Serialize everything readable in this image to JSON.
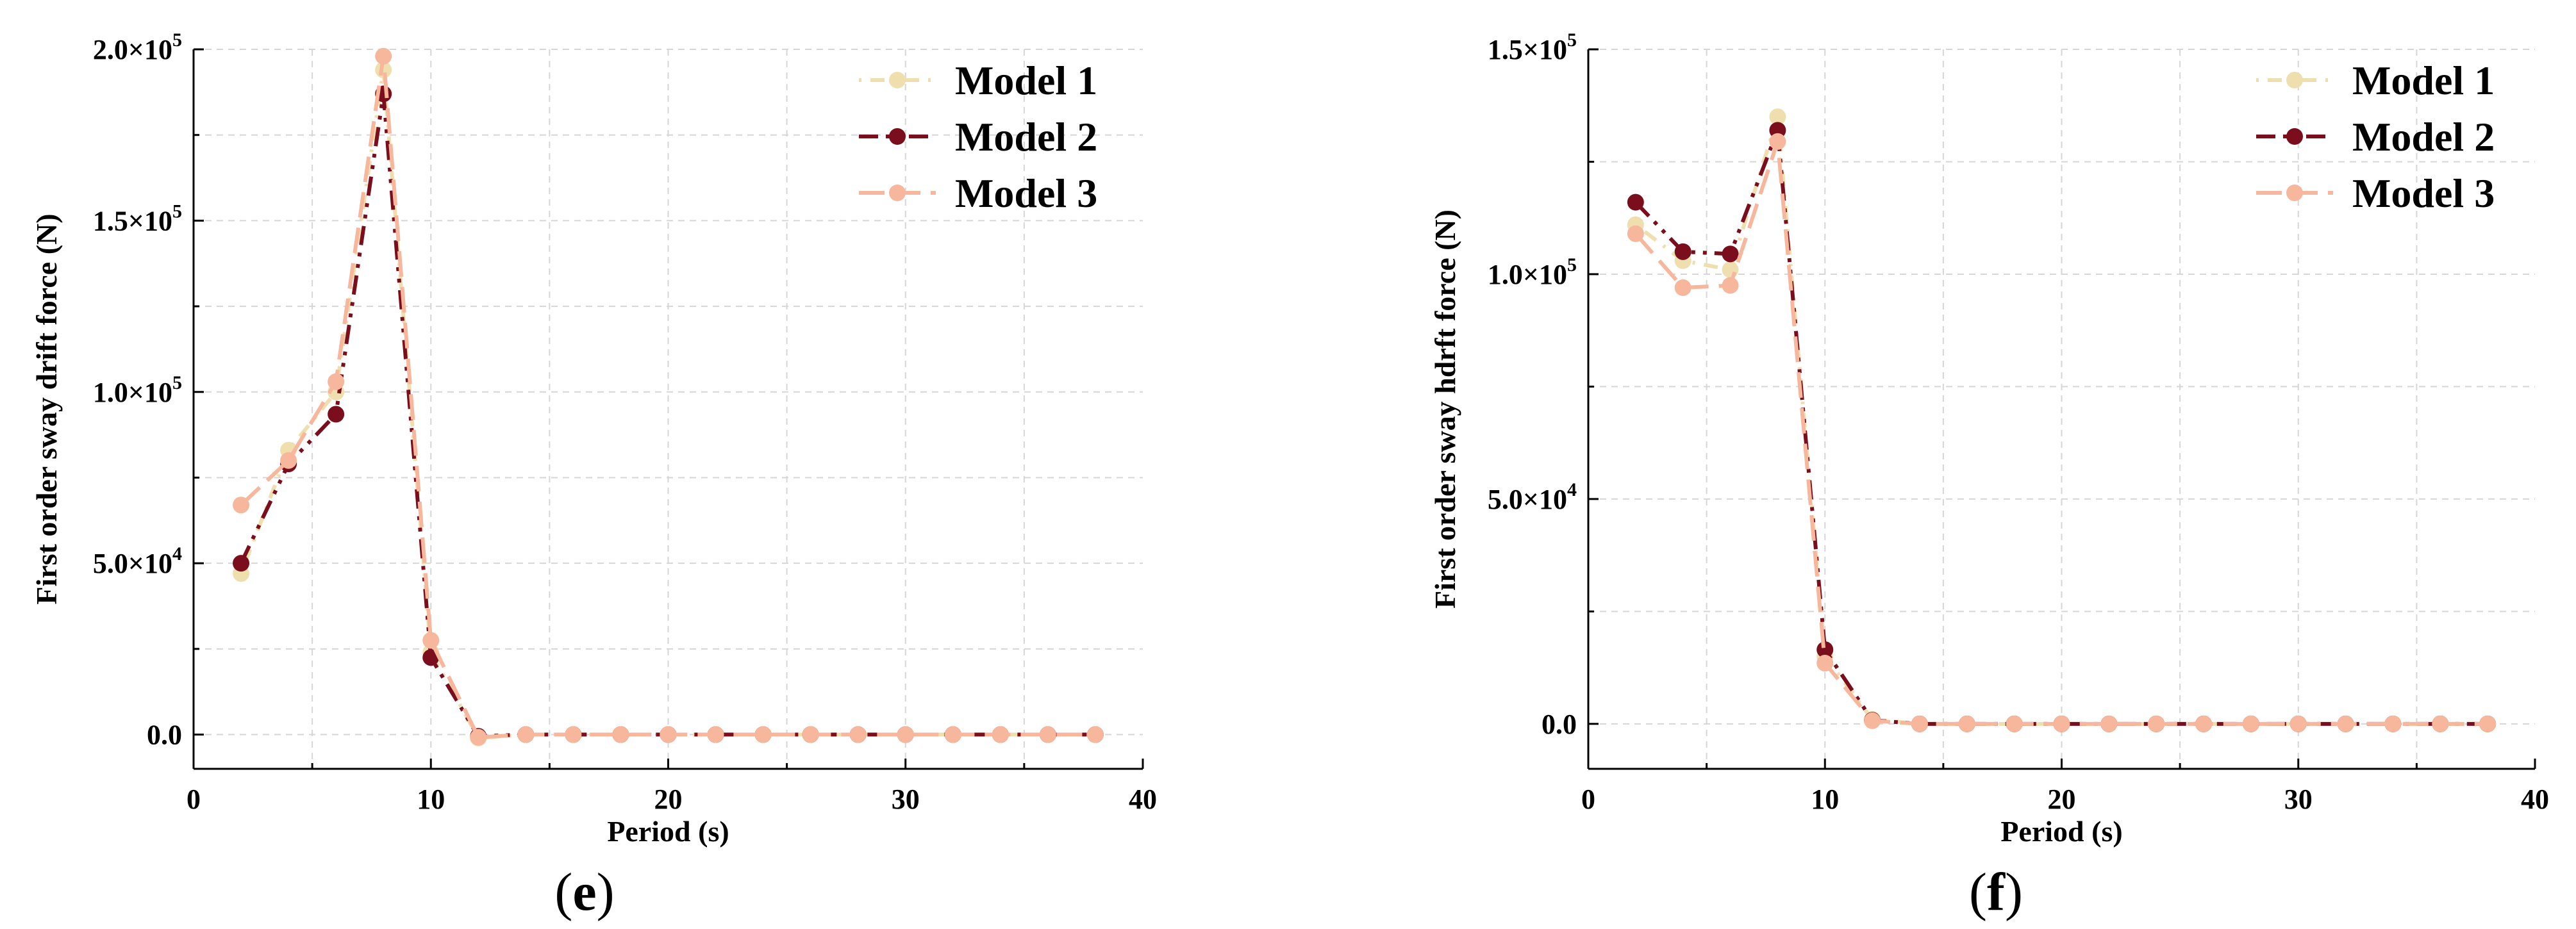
{
  "chart_data": [
    {
      "type": "line",
      "panel_label": {
        "open": "(",
        "letter": "e",
        "close": ")"
      },
      "title": "",
      "xlabel": "Period (s)",
      "ylabel": "First order sway drift force (N)",
      "xlim": [
        0,
        40
      ],
      "ylim": [
        -10000,
        200000
      ],
      "grid": true,
      "legend_position": "top-right",
      "x_ticks": [
        {
          "value": 0,
          "label": "0"
        },
        {
          "value": 10,
          "label": "10"
        },
        {
          "value": 20,
          "label": "20"
        },
        {
          "value": 30,
          "label": "30"
        },
        {
          "value": 40,
          "label": "40"
        }
      ],
      "y_ticks": [
        {
          "value": 0,
          "mantissa": "0.0",
          "exp": ""
        },
        {
          "value": 50000,
          "mantissa": "5.0×10",
          "exp": "4"
        },
        {
          "value": 100000,
          "mantissa": "1.0×10",
          "exp": "5"
        },
        {
          "value": 150000,
          "mantissa": "1.5×10",
          "exp": "5"
        },
        {
          "value": 200000,
          "mantissa": "2.0×10",
          "exp": "5"
        }
      ],
      "x": [
        2,
        4,
        6,
        8,
        10,
        12,
        14,
        16,
        18,
        20,
        22,
        24,
        26,
        28,
        30,
        32,
        34,
        36,
        38
      ],
      "series": [
        {
          "name": "Model 1",
          "color": "#f0dfae",
          "dash": "dot-dash",
          "values": [
            47000,
            83000,
            100000,
            194000,
            24000,
            -1000,
            0,
            0,
            0,
            0,
            0,
            0,
            0,
            0,
            0,
            0,
            0,
            0,
            0
          ]
        },
        {
          "name": "Model 2",
          "color": "#7b0e1c",
          "dash": "dash-dot-dot",
          "values": [
            50000,
            79000,
            93500,
            187000,
            22500,
            -500,
            0,
            0,
            0,
            0,
            0,
            0,
            0,
            0,
            0,
            0,
            0,
            0,
            0
          ]
        },
        {
          "name": "Model 3",
          "color": "#f7b79c",
          "dash": "long-dash",
          "values": [
            67000,
            80000,
            103000,
            198000,
            27500,
            -800,
            0,
            0,
            0,
            0,
            0,
            0,
            0,
            0,
            0,
            0,
            0,
            0,
            0
          ]
        }
      ]
    },
    {
      "type": "line",
      "panel_label": {
        "open": "(",
        "letter": "f",
        "close": ")"
      },
      "title": "",
      "xlabel": "Period (s)",
      "ylabel": "First order sway hdrft force (N)",
      "xlim": [
        0,
        40
      ],
      "ylim": [
        -10000,
        150000
      ],
      "grid": true,
      "legend_position": "top-right",
      "x_ticks": [
        {
          "value": 0,
          "label": "0"
        },
        {
          "value": 10,
          "label": "10"
        },
        {
          "value": 20,
          "label": "20"
        },
        {
          "value": 30,
          "label": "30"
        },
        {
          "value": 40,
          "label": "40"
        }
      ],
      "y_ticks": [
        {
          "value": 0,
          "mantissa": "0.0",
          "exp": ""
        },
        {
          "value": 50000,
          "mantissa": "5.0×10",
          "exp": "4"
        },
        {
          "value": 100000,
          "mantissa": "1.0×10",
          "exp": "5"
        },
        {
          "value": 150000,
          "mantissa": "1.5×10",
          "exp": "5"
        }
      ],
      "x": [
        2,
        4,
        6,
        8,
        10,
        12,
        14,
        16,
        18,
        20,
        22,
        24,
        26,
        28,
        30,
        32,
        34,
        36,
        38
      ],
      "series": [
        {
          "name": "Model 1",
          "color": "#f0dfae",
          "dash": "dot-dash",
          "values": [
            111000,
            103000,
            101000,
            135000,
            15000,
            1000,
            0,
            0,
            0,
            0,
            0,
            0,
            0,
            0,
            0,
            0,
            0,
            0,
            0
          ]
        },
        {
          "name": "Model 2",
          "color": "#7b0e1c",
          "dash": "dash-dot-dot",
          "values": [
            116000,
            105000,
            104500,
            132000,
            16500,
            800,
            0,
            0,
            0,
            0,
            0,
            0,
            0,
            0,
            0,
            0,
            0,
            0,
            0
          ]
        },
        {
          "name": "Model 3",
          "color": "#f7b79c",
          "dash": "long-dash",
          "values": [
            109000,
            97000,
            97500,
            129500,
            13500,
            700,
            0,
            0,
            0,
            0,
            0,
            0,
            0,
            0,
            0,
            0,
            0,
            0,
            0
          ]
        }
      ]
    }
  ]
}
